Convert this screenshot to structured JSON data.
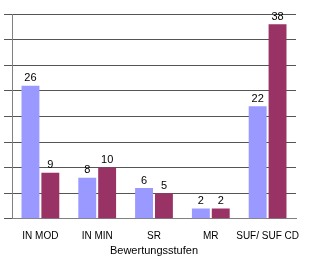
{
  "chart_data": {
    "type": "bar",
    "x_label": "Bewertungsstufen",
    "categories": [
      "IN MOD",
      "IN MIN",
      "SR",
      "MR",
      "SUF/ SUF CD"
    ],
    "series": [
      {
        "color": "#9999ff",
        "values": [
          26,
          8,
          6,
          2,
          22
        ]
      },
      {
        "color": "#993366",
        "values": [
          9,
          10,
          5,
          2,
          38
        ]
      }
    ],
    "ylim": [
      0,
      40
    ],
    "yticks": [
      0,
      5,
      10,
      15,
      20,
      25,
      30,
      35,
      40
    ],
    "grid": true,
    "data_labels": true,
    "tick_labels": "x"
  }
}
